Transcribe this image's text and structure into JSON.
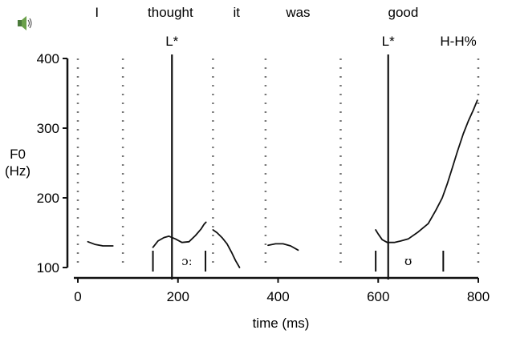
{
  "chart_data": {
    "type": "line",
    "xlabel": "time (ms)",
    "ylabel_line1": "F0",
    "ylabel_line2": "(Hz)",
    "xlim": [
      0,
      800
    ],
    "ylim": [
      100,
      400
    ],
    "x_ticks": [
      0,
      200,
      400,
      600,
      800
    ],
    "y_ticks": [
      100,
      200,
      300,
      400
    ],
    "words": [
      {
        "text": "I",
        "x": 38
      },
      {
        "text": "thought",
        "x": 185
      },
      {
        "text": "it",
        "x": 317
      },
      {
        "text": "was",
        "x": 440
      },
      {
        "text": "good",
        "x": 650
      }
    ],
    "tone_labels": [
      {
        "text": "L*",
        "x": 188
      },
      {
        "text": "L*",
        "x": 620
      },
      {
        "text": "H-H%",
        "x": 760
      }
    ],
    "accent_lines": [
      188,
      620
    ],
    "word_boundaries": [
      0,
      90,
      270,
      375,
      525,
      800
    ],
    "segment_marks": [
      150,
      255,
      595,
      730
    ],
    "phonetic_labels": [
      {
        "text": "ɔː",
        "x": 218
      },
      {
        "text": "ʊ",
        "x": 660
      }
    ],
    "series": [
      {
        "values": [
          [
            20,
            137
          ],
          [
            35,
            133
          ],
          [
            50,
            131
          ],
          [
            70,
            131
          ]
        ]
      },
      {
        "values": [
          [
            150,
            129
          ],
          [
            160,
            138
          ],
          [
            172,
            143
          ],
          [
            182,
            145
          ],
          [
            195,
            141
          ],
          [
            208,
            136
          ],
          [
            222,
            137
          ],
          [
            235,
            146
          ],
          [
            246,
            155
          ],
          [
            252,
            162
          ],
          [
            256,
            165
          ]
        ]
      },
      {
        "values": [
          [
            270,
            154
          ],
          [
            278,
            150
          ],
          [
            288,
            143
          ],
          [
            298,
            134
          ],
          [
            307,
            122
          ],
          [
            315,
            110
          ],
          [
            323,
            100
          ]
        ]
      },
      {
        "values": [
          [
            380,
            132
          ],
          [
            395,
            134
          ],
          [
            410,
            134
          ],
          [
            425,
            131
          ],
          [
            440,
            125
          ]
        ]
      },
      {
        "values": [
          [
            595,
            154
          ],
          [
            600,
            148
          ],
          [
            608,
            140
          ],
          [
            618,
            136
          ],
          [
            632,
            136
          ],
          [
            645,
            138
          ],
          [
            660,
            141
          ],
          [
            680,
            151
          ],
          [
            700,
            163
          ],
          [
            715,
            182
          ],
          [
            728,
            200
          ],
          [
            738,
            220
          ],
          [
            748,
            243
          ],
          [
            758,
            266
          ],
          [
            770,
            292
          ],
          [
            780,
            310
          ],
          [
            790,
            326
          ],
          [
            798,
            340
          ]
        ]
      }
    ]
  },
  "speaker_icon": "speaker-icon"
}
